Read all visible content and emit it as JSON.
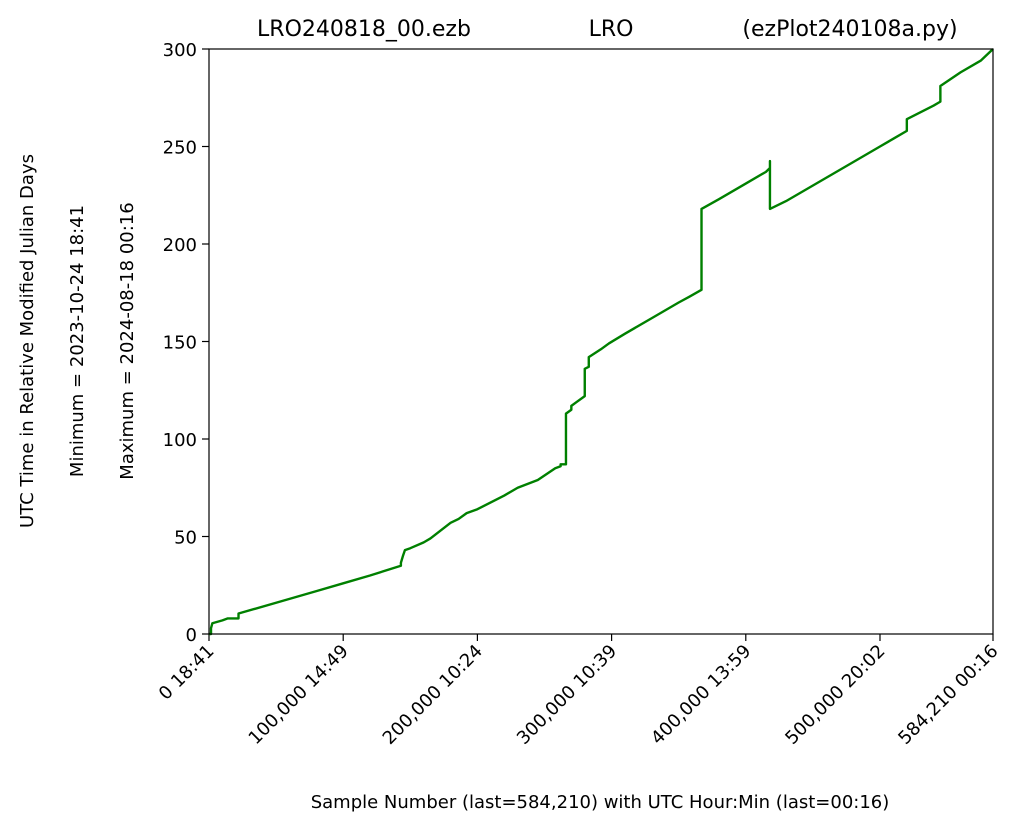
{
  "chart_data": {
    "type": "line",
    "title_left": "LRO240818_00.ezb",
    "title_center": "LRO",
    "title_right": "(ezPlot240108a.py)",
    "xlabel": "Sample Number (last=584,210) with UTC Hour:Min (last=00:16)",
    "ylabel": "UTC Time in Relative Modified Julian Days",
    "ylabel_min": "Minimum = 2023-10-24   18:41",
    "ylabel_max": "Maximum = 2024-08-18   00:16",
    "xlim": [
      0,
      584210
    ],
    "ylim": [
      0,
      300
    ],
    "grid": false,
    "legend": "none",
    "line_color": "#008000",
    "x_ticks": [
      {
        "value": 0,
        "label": "0  18:41"
      },
      {
        "value": 100000,
        "label": "100,000  14:49"
      },
      {
        "value": 200000,
        "label": "200,000  10:24"
      },
      {
        "value": 300000,
        "label": "300,000  10:39"
      },
      {
        "value": 400000,
        "label": "400,000  13:59"
      },
      {
        "value": 500000,
        "label": "500,000  20:02"
      },
      {
        "value": 584210,
        "label": "584,210  00:16"
      }
    ],
    "y_ticks": [
      {
        "value": 0,
        "label": "0"
      },
      {
        "value": 50,
        "label": "50"
      },
      {
        "value": 100,
        "label": "100"
      },
      {
        "value": 150,
        "label": "150"
      },
      {
        "value": 200,
        "label": "200"
      },
      {
        "value": 250,
        "label": "250"
      },
      {
        "value": 300,
        "label": "300"
      }
    ],
    "series": [
      {
        "points": [
          [
            0,
            0
          ],
          [
            1500,
            0
          ],
          [
            1500,
            3
          ],
          [
            2500,
            5.5
          ],
          [
            10000,
            7
          ],
          [
            14000,
            8
          ],
          [
            22000,
            8
          ],
          [
            22000,
            10.5
          ],
          [
            60000,
            18
          ],
          [
            80000,
            22
          ],
          [
            100000,
            26
          ],
          [
            120000,
            30
          ],
          [
            143000,
            35
          ],
          [
            143000,
            36.5
          ],
          [
            144500,
            40
          ],
          [
            146000,
            43
          ],
          [
            150000,
            44
          ],
          [
            160000,
            47
          ],
          [
            165000,
            49
          ],
          [
            180000,
            57
          ],
          [
            186000,
            59
          ],
          [
            192000,
            62
          ],
          [
            200000,
            64
          ],
          [
            220000,
            71
          ],
          [
            230000,
            75
          ],
          [
            245000,
            79
          ],
          [
            258000,
            85
          ],
          [
            262000,
            86
          ],
          [
            262000,
            87
          ],
          [
            266000,
            87
          ],
          [
            266000,
            113
          ],
          [
            270000,
            115
          ],
          [
            270000,
            117
          ],
          [
            274000,
            119
          ],
          [
            280000,
            122
          ],
          [
            280000,
            136
          ],
          [
            283000,
            137
          ],
          [
            283000,
            142
          ],
          [
            292000,
            146
          ],
          [
            298000,
            149
          ],
          [
            310000,
            154
          ],
          [
            330000,
            162
          ],
          [
            350000,
            170
          ],
          [
            358000,
            173
          ],
          [
            367000,
            176.5
          ],
          [
            367000,
            218
          ],
          [
            380000,
            223
          ],
          [
            400000,
            231
          ],
          [
            415000,
            237
          ],
          [
            418000,
            239
          ],
          [
            418000,
            242.5
          ],
          [
            418000,
            218
          ],
          [
            430000,
            222
          ],
          [
            455000,
            232
          ],
          [
            480000,
            242
          ],
          [
            500000,
            250
          ],
          [
            510000,
            254
          ],
          [
            520000,
            258
          ],
          [
            520000,
            264
          ],
          [
            540000,
            271
          ],
          [
            545000,
            273
          ],
          [
            545000,
            281
          ],
          [
            560000,
            288
          ],
          [
            575000,
            294
          ],
          [
            584210,
            300
          ]
        ]
      }
    ]
  }
}
